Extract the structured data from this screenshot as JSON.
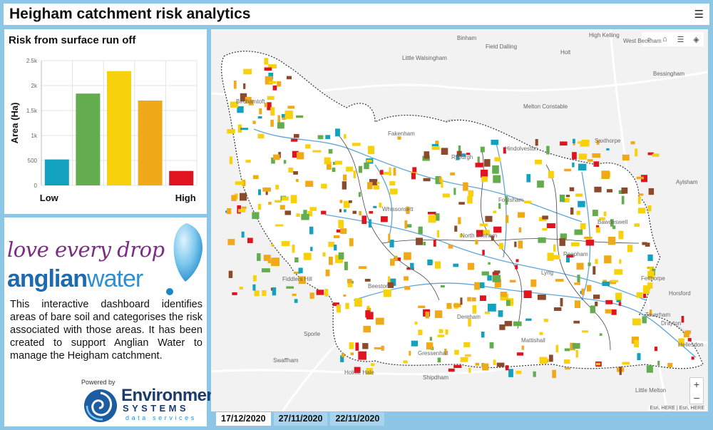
{
  "header": {
    "title": "Heigham catchment risk analytics",
    "menu_icon": "hamburger-icon"
  },
  "chart_panel": {
    "title": "Risk from surface run off"
  },
  "chart_data": {
    "type": "bar",
    "title": "Risk from surface run off",
    "categories": [
      "Low",
      "",
      "",
      "",
      "High"
    ],
    "values": [
      520,
      1840,
      2290,
      1700,
      290
    ],
    "colors": [
      "#12a2c0",
      "#63ad4e",
      "#f7d10b",
      "#f0aa19",
      "#e0141e"
    ],
    "ylabel": "Area (Ha)",
    "ylim": [
      0,
      2500
    ],
    "yticks": [
      "0",
      "500",
      "1k",
      "1.5k",
      "2k",
      "2.5k"
    ],
    "ytick_values": [
      0,
      500,
      1000,
      1500,
      2000,
      2500
    ],
    "xlabels": {
      "left": "Low",
      "right": "High"
    },
    "grid": true
  },
  "info": {
    "logo_line1": "love every drop",
    "logo_line2a": "anglian",
    "logo_line2b": "water",
    "description": "This interactive dashboard identifies areas of bare soil and categorises the risk associated with those areas. It has been created to support Anglian Water to manage the Heigham catchment.",
    "powered_by": "Powered by",
    "es_name": "Environment",
    "es_systems": "SYSTEMS",
    "es_ds": "data services"
  },
  "map": {
    "places": [
      "Binham",
      "High Kelling",
      "West Beckham",
      "Field Dalling",
      "Holt",
      "Little Walsingham",
      "Bessingham",
      "Melton Constable",
      "Birchamtoft",
      "Fakenham",
      "Saxthorpe",
      "Hindolveston",
      "Ryburgh",
      "Foulsham",
      "Aylsham",
      "Whissonsett",
      "Bawdeswell",
      "North Elmham",
      "Reepham",
      "Fiddlers Hill",
      "Beeston",
      "Lyng",
      "Felthorpe",
      "Horsford",
      "Dereham",
      "Taverham",
      "Drayton",
      "Sporle",
      "Mattishall",
      "Swaffham",
      "Holme Hale",
      "Shipdham",
      "Hellesdon",
      "Little Melton",
      "Gressenhall"
    ],
    "tools": [
      "search-icon",
      "home-icon",
      "list-icon",
      "layers-icon"
    ],
    "zoom_in": "+",
    "zoom_out": "–",
    "attribution": "Esri, HERE | Esri, HERE"
  },
  "dates": {
    "tab1": "17/12/2020",
    "tab2": "27/11/2020",
    "tab3": "22/11/2020"
  }
}
